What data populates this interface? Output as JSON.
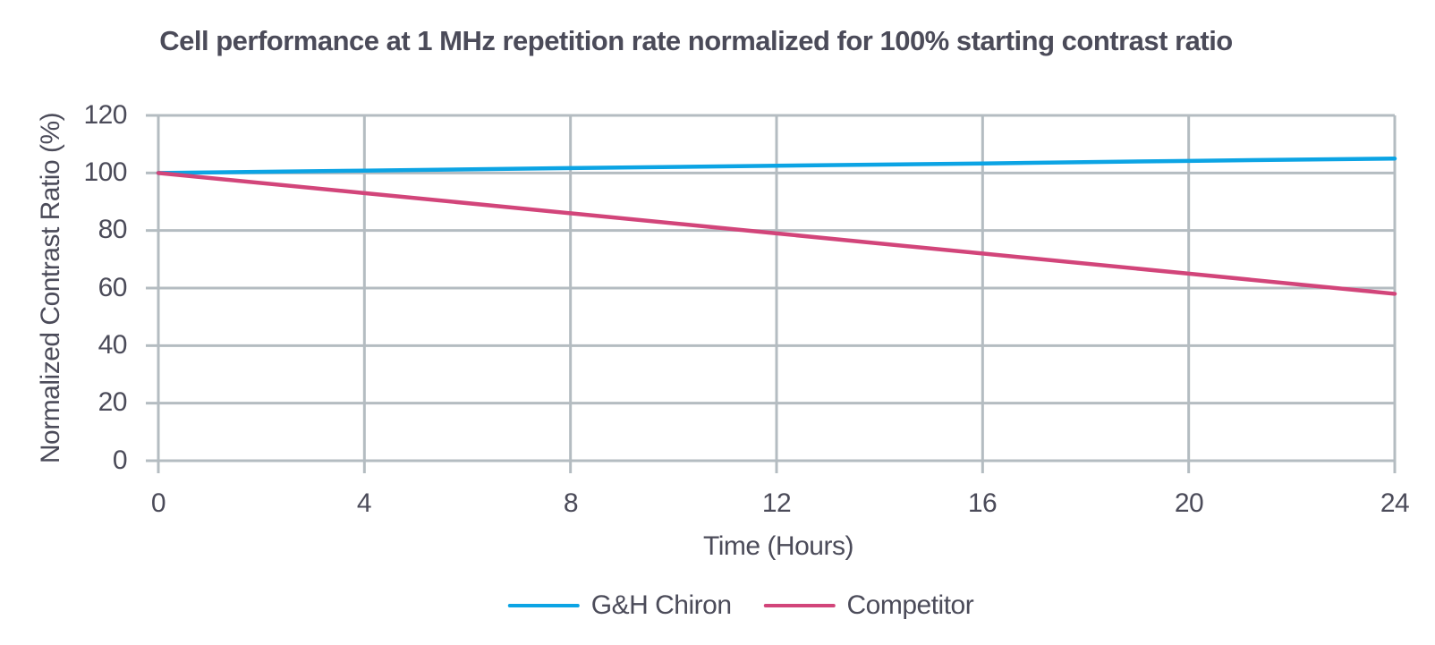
{
  "title": "Cell performance at 1 MHz repetition rate normalized for 100% starting contrast ratio",
  "colors": {
    "accent_blue": "#0ca4e4",
    "accent_pink": "#d2457a",
    "grid": "#b4bcc1",
    "text": "#4b4b59"
  },
  "chart_data": {
    "type": "line",
    "title": "Cell performance at 1 MHz repetition rate normalized for 100% starting contrast ratio",
    "xlabel": "Time (Hours)",
    "ylabel": "Normalized Contrast Ratio (%)",
    "x": [
      0,
      4,
      8,
      12,
      16,
      20,
      24
    ],
    "x_ticks": [
      0,
      4,
      8,
      12,
      16,
      20,
      24
    ],
    "y_ticks": [
      0,
      20,
      40,
      60,
      80,
      100,
      120
    ],
    "xlim": [
      0,
      24
    ],
    "ylim": [
      0,
      120
    ],
    "grid": true,
    "legend_position": "bottom",
    "series": [
      {
        "name": "G&H Chiron",
        "color": "#0ca4e4",
        "values": [
          100,
          100.8,
          101.7,
          102.5,
          103.3,
          104.2,
          105
        ]
      },
      {
        "name": "Competitor",
        "color": "#d2457a",
        "values": [
          100,
          93,
          86,
          79,
          72,
          65,
          58
        ]
      }
    ]
  }
}
